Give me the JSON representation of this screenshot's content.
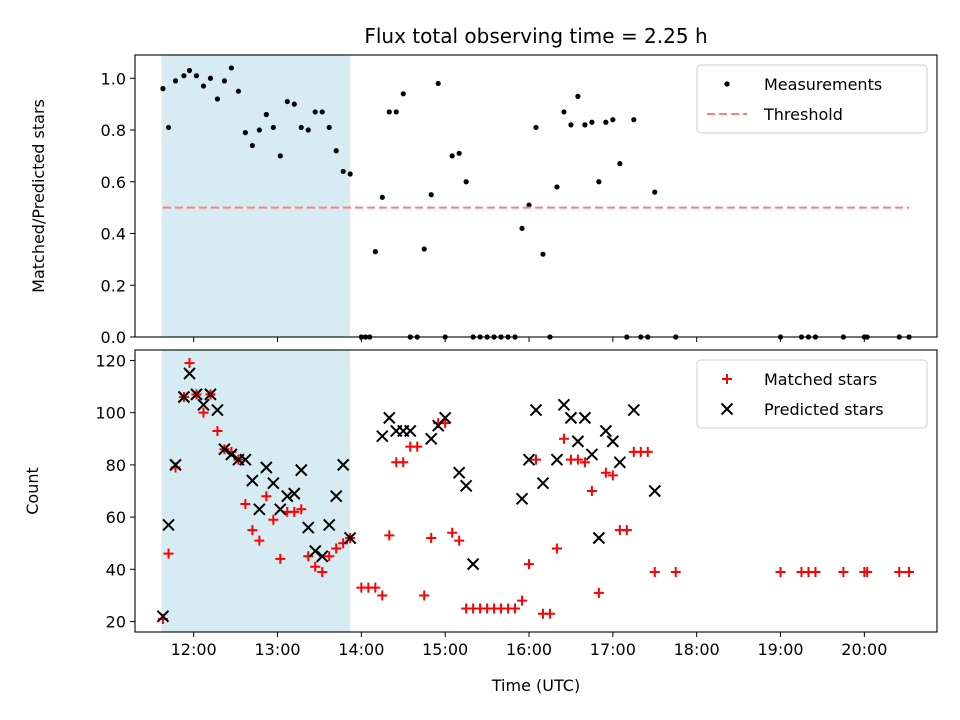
{
  "chart_data": [
    {
      "type": "scatter",
      "title": "Flux total observing time = 2.25 h",
      "xlabel": "",
      "ylabel": "Matched/Predicted stars",
      "ylim": [
        0,
        1.09
      ],
      "xlim": [
        "11:18",
        "20:52"
      ],
      "highlight_span": {
        "from": "11:37",
        "to": "13:52",
        "color": "#add8e6"
      },
      "legend_position": "top-right",
      "yticks": [
        "0.0",
        "0.2",
        "0.4",
        "0.6",
        "0.8",
        "1.0"
      ],
      "series": [
        {
          "name": "Measurements",
          "color": "#000000",
          "marker": "dot",
          "points": [
            [
              "11:38",
              0.96
            ],
            [
              "11:42",
              0.81
            ],
            [
              "11:47",
              0.99
            ],
            [
              "11:53",
              1.01
            ],
            [
              "11:57",
              1.03
            ],
            [
              "12:02",
              1.01
            ],
            [
              "12:07",
              0.97
            ],
            [
              "12:12",
              1.0
            ],
            [
              "12:17",
              0.92
            ],
            [
              "12:22",
              0.99
            ],
            [
              "12:27",
              1.04
            ],
            [
              "12:32",
              0.95
            ],
            [
              "12:37",
              0.79
            ],
            [
              "12:42",
              0.74
            ],
            [
              "12:47",
              0.8
            ],
            [
              "12:52",
              0.86
            ],
            [
              "12:57",
              0.81
            ],
            [
              "13:02",
              0.7
            ],
            [
              "13:07",
              0.91
            ],
            [
              "13:12",
              0.9
            ],
            [
              "13:17",
              0.81
            ],
            [
              "13:22",
              0.8
            ],
            [
              "13:27",
              0.87
            ],
            [
              "13:32",
              0.87
            ],
            [
              "13:37",
              0.81
            ],
            [
              "13:42",
              0.72
            ],
            [
              "13:47",
              0.64
            ],
            [
              "13:52",
              0.63
            ],
            [
              "14:00",
              0.0
            ],
            [
              "14:03",
              0.0
            ],
            [
              "14:06",
              0.0
            ],
            [
              "14:10",
              0.33
            ],
            [
              "14:15",
              0.54
            ],
            [
              "14:20",
              0.87
            ],
            [
              "14:25",
              0.87
            ],
            [
              "14:30",
              0.94
            ],
            [
              "14:35",
              0.0
            ],
            [
              "14:40",
              0.0
            ],
            [
              "14:45",
              0.34
            ],
            [
              "14:50",
              0.55
            ],
            [
              "14:55",
              0.98
            ],
            [
              "15:00",
              0.0
            ],
            [
              "15:05",
              0.7
            ],
            [
              "15:10",
              0.71
            ],
            [
              "15:15",
              0.6
            ],
            [
              "15:20",
              0.0
            ],
            [
              "15:25",
              0.0
            ],
            [
              "15:30",
              0.0
            ],
            [
              "15:35",
              0.0
            ],
            [
              "15:40",
              0.0
            ],
            [
              "15:45",
              0.0
            ],
            [
              "15:50",
              0.0
            ],
            [
              "15:55",
              0.42
            ],
            [
              "16:00",
              0.51
            ],
            [
              "16:05",
              0.81
            ],
            [
              "16:10",
              0.32
            ],
            [
              "16:15",
              0.0
            ],
            [
              "16:20",
              0.58
            ],
            [
              "16:25",
              0.87
            ],
            [
              "16:30",
              0.82
            ],
            [
              "16:35",
              0.93
            ],
            [
              "16:40",
              0.82
            ],
            [
              "16:45",
              0.83
            ],
            [
              "16:50",
              0.6
            ],
            [
              "16:55",
              0.83
            ],
            [
              "17:00",
              0.84
            ],
            [
              "17:05",
              0.67
            ],
            [
              "17:10",
              0.0
            ],
            [
              "17:15",
              0.84
            ],
            [
              "17:20",
              0.0
            ],
            [
              "17:25",
              0.0
            ],
            [
              "17:30",
              0.56
            ],
            [
              "17:45",
              0.0
            ],
            [
              "19:00",
              0.0
            ],
            [
              "19:15",
              0.0
            ],
            [
              "19:20",
              0.0
            ],
            [
              "19:25",
              0.0
            ],
            [
              "19:45",
              0.0
            ],
            [
              "20:00",
              0.0
            ],
            [
              "20:02",
              0.0
            ],
            [
              "20:25",
              0.0
            ],
            [
              "20:32",
              0.0
            ]
          ]
        },
        {
          "name": "Threshold",
          "color": "#ff7f7f",
          "marker": "dashed-line",
          "x": [
            "11:38",
            "20:32"
          ],
          "y": [
            0.5,
            0.5
          ]
        }
      ]
    },
    {
      "type": "scatter",
      "title": "",
      "xlabel": "Time (UTC)",
      "ylabel": "Count",
      "ylim": [
        16,
        124
      ],
      "xlim": [
        "11:18",
        "20:52"
      ],
      "highlight_span": {
        "from": "11:37",
        "to": "13:52",
        "color": "#add8e6"
      },
      "legend_position": "top-right",
      "yticks": [
        "20",
        "40",
        "60",
        "80",
        "100",
        "120"
      ],
      "xticks": [
        "12:00",
        "13:00",
        "14:00",
        "15:00",
        "16:00",
        "17:00",
        "18:00",
        "19:00",
        "20:00"
      ],
      "series": [
        {
          "name": "Matched stars",
          "color": "#ff0000",
          "marker": "plus",
          "points": [
            [
              "11:38",
              21
            ],
            [
              "11:42",
              46
            ],
            [
              "11:47",
              79
            ],
            [
              "11:53",
              106
            ],
            [
              "11:57",
              119
            ],
            [
              "12:02",
              107
            ],
            [
              "12:07",
              100
            ],
            [
              "12:12",
              107
            ],
            [
              "12:17",
              93
            ],
            [
              "12:22",
              86
            ],
            [
              "12:27",
              85
            ],
            [
              "12:32",
              82
            ],
            [
              "12:37",
              65
            ],
            [
              "12:42",
              55
            ],
            [
              "12:47",
              51
            ],
            [
              "12:52",
              68
            ],
            [
              "12:57",
              59
            ],
            [
              "13:02",
              44
            ],
            [
              "13:07",
              62
            ],
            [
              "13:12",
              62
            ],
            [
              "13:17",
              63
            ],
            [
              "13:22",
              45
            ],
            [
              "13:27",
              41
            ],
            [
              "13:32",
              39
            ],
            [
              "13:37",
              45
            ],
            [
              "13:42",
              48
            ],
            [
              "13:47",
              50
            ],
            [
              "13:52",
              52
            ],
            [
              "14:00",
              33
            ],
            [
              "14:05",
              33
            ],
            [
              "14:10",
              33
            ],
            [
              "14:15",
              30
            ],
            [
              "14:20",
              53
            ],
            [
              "14:25",
              81
            ],
            [
              "14:30",
              81
            ],
            [
              "14:35",
              87
            ],
            [
              "14:40",
              87
            ],
            [
              "14:45",
              30
            ],
            [
              "14:50",
              52
            ],
            [
              "14:55",
              96
            ],
            [
              "15:00",
              96
            ],
            [
              "15:05",
              54
            ],
            [
              "15:10",
              51
            ],
            [
              "15:15",
              25
            ],
            [
              "15:20",
              25
            ],
            [
              "15:25",
              25
            ],
            [
              "15:30",
              25
            ],
            [
              "15:35",
              25
            ],
            [
              "15:40",
              25
            ],
            [
              "15:45",
              25
            ],
            [
              "15:50",
              25
            ],
            [
              "15:55",
              28
            ],
            [
              "16:00",
              42
            ],
            [
              "16:05",
              82
            ],
            [
              "16:10",
              23
            ],
            [
              "16:15",
              23
            ],
            [
              "16:20",
              48
            ],
            [
              "16:25",
              90
            ],
            [
              "16:30",
              82
            ],
            [
              "16:35",
              82
            ],
            [
              "16:40",
              81
            ],
            [
              "16:45",
              70
            ],
            [
              "16:50",
              31
            ],
            [
              "16:55",
              77
            ],
            [
              "17:00",
              76
            ],
            [
              "17:05",
              55
            ],
            [
              "17:10",
              55
            ],
            [
              "17:15",
              85
            ],
            [
              "17:20",
              85
            ],
            [
              "17:25",
              85
            ],
            [
              "17:30",
              39
            ],
            [
              "17:45",
              39
            ],
            [
              "19:00",
              39
            ],
            [
              "19:15",
              39
            ],
            [
              "19:20",
              39
            ],
            [
              "19:25",
              39
            ],
            [
              "19:45",
              39
            ],
            [
              "20:00",
              39
            ],
            [
              "20:02",
              39
            ],
            [
              "20:25",
              39
            ],
            [
              "20:32",
              39
            ]
          ]
        },
        {
          "name": "Predicted stars",
          "color": "#000000",
          "marker": "x",
          "points": [
            [
              "11:38",
              22
            ],
            [
              "11:42",
              57
            ],
            [
              "11:47",
              80
            ],
            [
              "11:53",
              106
            ],
            [
              "11:57",
              115
            ],
            [
              "12:02",
              107
            ],
            [
              "12:07",
              103
            ],
            [
              "12:12",
              107
            ],
            [
              "12:17",
              101
            ],
            [
              "12:22",
              86
            ],
            [
              "12:27",
              84
            ],
            [
              "12:32",
              82
            ],
            [
              "12:37",
              82
            ],
            [
              "12:42",
              74
            ],
            [
              "12:47",
              63
            ],
            [
              "12:52",
              79
            ],
            [
              "12:57",
              73
            ],
            [
              "13:02",
              63
            ],
            [
              "13:07",
              68
            ],
            [
              "13:12",
              69
            ],
            [
              "13:17",
              78
            ],
            [
              "13:22",
              56
            ],
            [
              "13:27",
              47
            ],
            [
              "13:32",
              45
            ],
            [
              "13:37",
              57
            ],
            [
              "13:42",
              68
            ],
            [
              "13:47",
              80
            ],
            [
              "13:52",
              52
            ],
            [
              "14:15",
              91
            ],
            [
              "14:20",
              98
            ],
            [
              "14:25",
              93
            ],
            [
              "14:30",
              93
            ],
            [
              "14:35",
              93
            ],
            [
              "14:50",
              90
            ],
            [
              "14:55",
              95
            ],
            [
              "15:00",
              98
            ],
            [
              "15:10",
              77
            ],
            [
              "15:15",
              72
            ],
            [
              "15:20",
              42
            ],
            [
              "15:55",
              67
            ],
            [
              "16:00",
              82
            ],
            [
              "16:05",
              101
            ],
            [
              "16:10",
              73
            ],
            [
              "16:20",
              82
            ],
            [
              "16:25",
              103
            ],
            [
              "16:30",
              98
            ],
            [
              "16:35",
              89
            ],
            [
              "16:40",
              98
            ],
            [
              "16:45",
              84
            ],
            [
              "16:50",
              52
            ],
            [
              "16:55",
              93
            ],
            [
              "17:00",
              89
            ],
            [
              "17:05",
              81
            ],
            [
              "17:15",
              101
            ],
            [
              "17:30",
              70
            ]
          ]
        }
      ]
    }
  ]
}
